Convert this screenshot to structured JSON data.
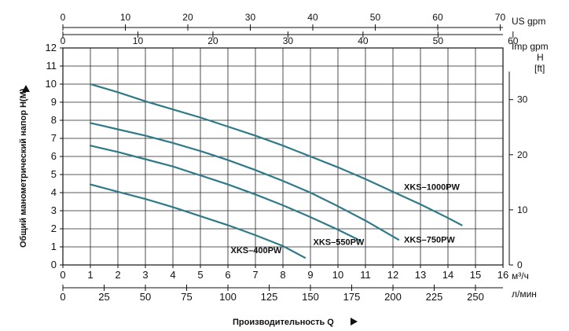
{
  "chart_data": {
    "type": "line",
    "ylabel": "Общий манометрический напор  H(M)",
    "xlabel": "Производительность Q",
    "right_axis_label_top": "H",
    "right_axis_label_bottom": "[ft]",
    "top_axis_1_label": "US gpm",
    "top_axis_2_label": "Imp gpm",
    "bottom_unit_m3h": "м³/ч",
    "bottom_unit_lmin": "л/мин",
    "xlim": [
      0,
      16
    ],
    "ylim": [
      0,
      12
    ],
    "x_ticks": [
      "0",
      "1",
      "2",
      "3",
      "4",
      "5",
      "6",
      "7",
      "8",
      "9",
      "10",
      "11",
      "12",
      "13",
      "14",
      "15",
      "16"
    ],
    "y_ticks": [
      "0",
      "1",
      "2",
      "3",
      "4",
      "5",
      "6",
      "7",
      "8",
      "9",
      "10",
      "11",
      "12"
    ],
    "ft_ticks": [
      "0",
      "10",
      "20",
      "30"
    ],
    "us_gpm_ticks": [
      "0",
      "10",
      "20",
      "30",
      "40",
      "50",
      "60",
      "70"
    ],
    "imp_gpm_ticks": [
      "0",
      "10",
      "20",
      "30",
      "40",
      "50",
      "60"
    ],
    "lmin_ticks": [
      "0",
      "25",
      "50",
      "75",
      "100",
      "125",
      "150",
      "175",
      "200",
      "225",
      "250"
    ],
    "series": [
      {
        "name": "XKS–400PW",
        "x": [
          1,
          2,
          3,
          4,
          5,
          6,
          7,
          8,
          8.8
        ],
        "y": [
          4.45,
          4.05,
          3.65,
          3.2,
          2.7,
          2.2,
          1.65,
          1.05,
          0.4
        ]
      },
      {
        "name": "XKS–550PW",
        "x": [
          1,
          2,
          3,
          4,
          5,
          6,
          7,
          8,
          9,
          10,
          10.8
        ],
        "y": [
          6.6,
          6.25,
          5.85,
          5.45,
          4.95,
          4.45,
          3.9,
          3.3,
          2.65,
          1.95,
          1.35
        ]
      },
      {
        "name": "XKS–750PW",
        "x": [
          1,
          2,
          3,
          4,
          5,
          6,
          7,
          8,
          9,
          10,
          11,
          12.2
        ],
        "y": [
          7.85,
          7.5,
          7.15,
          6.75,
          6.3,
          5.8,
          5.25,
          4.65,
          4.0,
          3.25,
          2.45,
          1.4
        ]
      },
      {
        "name": "XKS–1000PW",
        "x": [
          1,
          2,
          3,
          4,
          5,
          6,
          7,
          8,
          9,
          10,
          11,
          12,
          13,
          14,
          14.5
        ],
        "y": [
          10.0,
          9.55,
          9.05,
          8.6,
          8.15,
          7.65,
          7.15,
          6.6,
          6.0,
          5.4,
          4.75,
          4.05,
          3.35,
          2.6,
          2.2
        ]
      }
    ],
    "series_label_pos": [
      {
        "x": 6.1,
        "y": 0.65
      },
      {
        "x": 9.1,
        "y": 1.1
      },
      {
        "x": 12.4,
        "y": 1.25
      },
      {
        "x": 12.4,
        "y": 4.15
      }
    ],
    "colors": {
      "curve": "#2f7a86"
    }
  }
}
